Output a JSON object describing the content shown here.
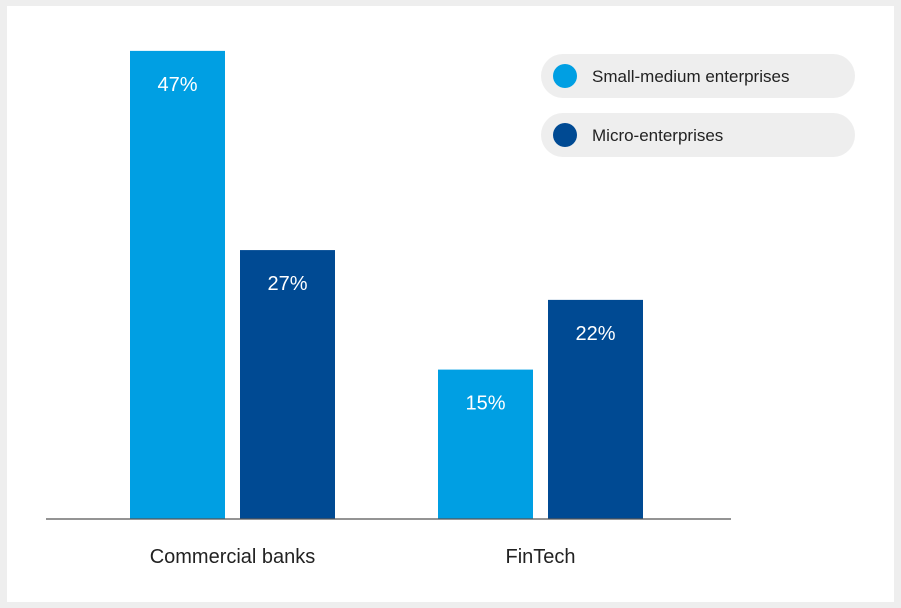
{
  "chart_data": {
    "type": "bar",
    "categories": [
      "Commercial banks",
      "FinTech"
    ],
    "series": [
      {
        "name": "Small-medium enterprises",
        "values": [
          47,
          15
        ],
        "labels": [
          "47%",
          "15%"
        ],
        "color": "#009fe3"
      },
      {
        "name": "Micro-enterprises",
        "values": [
          27,
          22
        ],
        "labels": [
          "27%",
          "22%"
        ],
        "color": "#004a93"
      }
    ],
    "title": "",
    "xlabel": "",
    "ylabel": "",
    "ylim": [
      0,
      50
    ],
    "value_suffix": "%",
    "legend_position": "top-right",
    "grid": false,
    "colors": {
      "background": "#eeeeee",
      "panel": "#ffffff",
      "legend_pill": "#eeeeee",
      "axis": "#555555"
    }
  }
}
